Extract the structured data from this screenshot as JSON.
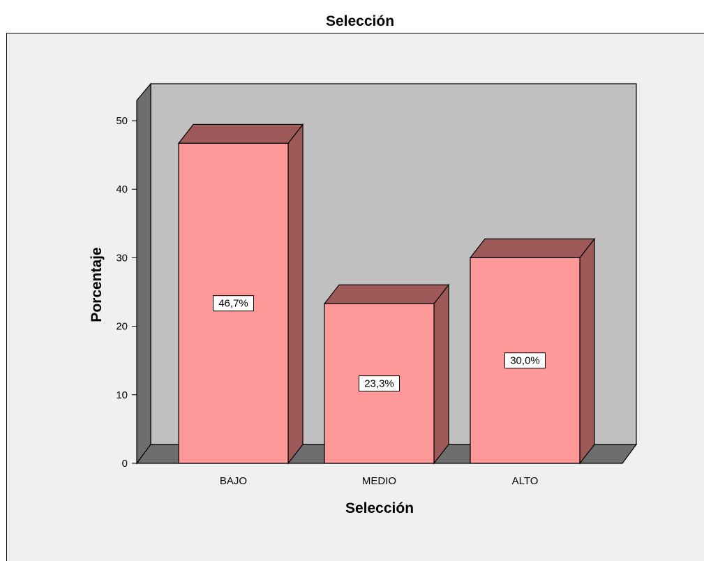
{
  "chart_data": {
    "type": "bar",
    "title": "Selección",
    "xlabel": "Selección",
    "ylabel": "Porcentaje",
    "categories": [
      "BAJO",
      "MEDIO",
      "ALTO"
    ],
    "values": [
      46.7,
      23.3,
      30.0
    ],
    "data_labels": [
      "46,7%",
      "23,3%",
      "30,0%"
    ],
    "ylim": [
      0,
      50
    ],
    "yticks": [
      0,
      10,
      20,
      30,
      40,
      50
    ],
    "grid": false,
    "style": "3d",
    "colors": {
      "page_background": "#ffffff",
      "frame_background": "#f0f0f0",
      "plot_background": "#c0c0c0",
      "wall_side": "#6e6e6e",
      "floor": "#6e6e6e",
      "bar_front": "#ff9999",
      "bar_top": "#9e5959",
      "bar_side": "#9e5959",
      "outline": "#000000",
      "label_box": "#ffffff"
    }
  }
}
